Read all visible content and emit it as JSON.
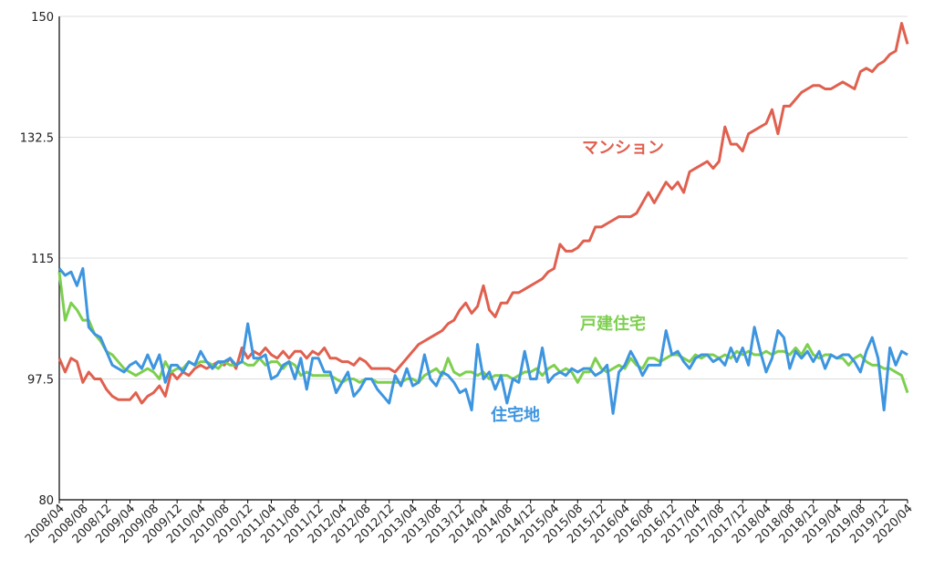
{
  "chart_data": {
    "type": "line",
    "categories": [
      "2008/04",
      null,
      null,
      null,
      "2008/08",
      null,
      null,
      null,
      "2008/12",
      null,
      null,
      null,
      "2009/04",
      null,
      null,
      null,
      "2009/08",
      null,
      null,
      null,
      "2009/12",
      null,
      null,
      null,
      "2010/04",
      null,
      null,
      null,
      "2010/08",
      null,
      null,
      null,
      "2010/12",
      null,
      null,
      null,
      "2011/04",
      null,
      null,
      null,
      "2011/08",
      null,
      null,
      null,
      "2011/12",
      null,
      null,
      null,
      "2012/04",
      null,
      null,
      null,
      "2012/08",
      null,
      null,
      null,
      "2012/12",
      null,
      null,
      null,
      "2013/04",
      null,
      null,
      null,
      "2013/08",
      null,
      null,
      null,
      "2013/12",
      null,
      null,
      null,
      "2014/04",
      null,
      null,
      null,
      "2014/08",
      null,
      null,
      null,
      "2014/12",
      null,
      null,
      null,
      "2015/04",
      null,
      null,
      null,
      "2015/08",
      null,
      null,
      null,
      "2015/12",
      null,
      null,
      null,
      "2016/04",
      null,
      null,
      null,
      "2016/08",
      null,
      null,
      null,
      "2016/12",
      null,
      null,
      null,
      "2017/04",
      null,
      null,
      null,
      "2017/08",
      null,
      null,
      null,
      "2017/12",
      null,
      null,
      null,
      "2018/04",
      null,
      null,
      null,
      "2018/08",
      null,
      null,
      null,
      "2018/12",
      null,
      null,
      null,
      "2019/04",
      null,
      null,
      null,
      "2019/08",
      null,
      null,
      null,
      "2019/12",
      null,
      null,
      null,
      "2020/04"
    ],
    "series": [
      {
        "name": "マンション",
        "color": "#e0604f",
        "values": [
          100.5,
          98.5,
          100.5,
          100,
          97,
          98.5,
          97.5,
          97.5,
          96,
          95,
          94.5,
          94.5,
          94.5,
          95.5,
          94,
          95,
          95.5,
          96.5,
          95,
          98.5,
          97.5,
          98.5,
          98,
          99,
          99.5,
          99,
          99.5,
          100,
          99.5,
          100.5,
          99,
          102,
          100.5,
          101.5,
          101,
          102,
          101,
          100.5,
          101.5,
          100.5,
          101.5,
          101.5,
          100.5,
          101.5,
          101,
          102,
          100.5,
          100.5,
          100,
          100,
          99.5,
          100.5,
          100,
          99,
          99,
          99,
          99,
          98.5,
          99.5,
          100.5,
          101.5,
          102.5,
          103,
          103.5,
          104,
          104.5,
          105.5,
          106,
          107.5,
          108.5,
          107,
          108,
          111,
          107.5,
          106.5,
          108.5,
          108.5,
          110,
          110,
          110.5,
          111,
          111.5,
          112,
          113,
          113.5,
          117,
          116,
          116,
          116.5,
          117.5,
          117.5,
          119.5,
          119.5,
          120,
          120.5,
          121,
          121,
          121,
          121.5,
          123,
          124.5,
          123,
          124.5,
          126,
          125,
          126,
          124.5,
          127.5,
          128,
          128.5,
          129,
          128,
          129,
          134,
          131.5,
          131.5,
          130.5,
          133,
          133.5,
          134,
          134.5,
          136.5,
          133,
          137,
          137,
          138,
          139,
          139.5,
          140,
          140,
          139.5,
          139.5,
          140,
          140.5,
          140,
          139.5,
          142,
          142.5,
          142,
          143,
          143.5,
          144.5,
          145,
          149,
          146
        ]
      },
      {
        "name": "戸建住宅",
        "color": "#7dcf4f",
        "values": [
          113,
          106,
          108.5,
          107.5,
          106,
          106,
          104,
          103,
          101.5,
          101,
          100,
          99,
          98.5,
          98,
          98.5,
          99,
          98.5,
          97.5,
          100,
          98.5,
          99,
          99,
          100,
          99.5,
          100,
          100,
          99.5,
          99,
          100,
          99.5,
          99.5,
          100,
          99.5,
          99.5,
          100.5,
          99.5,
          100,
          100,
          99,
          100,
          99.5,
          98,
          98.5,
          98,
          98,
          98,
          98,
          97.5,
          97,
          97.5,
          97.5,
          97,
          97.5,
          97.5,
          97,
          97,
          97,
          97,
          97,
          97.5,
          97.5,
          97,
          98,
          98.5,
          99,
          98,
          100.5,
          98.5,
          98,
          98.5,
          98.5,
          98,
          98.5,
          97.5,
          98,
          98,
          98,
          97.5,
          98,
          98.5,
          98.5,
          99,
          98,
          99,
          99.5,
          98.5,
          99,
          98.5,
          97,
          98.5,
          98.5,
          100.5,
          99,
          98.5,
          99,
          99.5,
          99,
          100.5,
          99.5,
          99,
          100.5,
          100.5,
          100,
          100.5,
          101,
          101,
          100.5,
          100,
          101,
          100.5,
          101,
          101,
          100.5,
          101,
          100.5,
          101.5,
          101,
          101.5,
          101,
          101,
          101.5,
          101,
          101.5,
          101.5,
          101,
          102,
          101,
          102.5,
          101,
          100.5,
          101,
          101,
          100.5,
          100.5,
          99.5,
          100.5,
          101,
          100,
          99.5,
          99.5,
          99,
          99,
          98.5,
          98,
          95.5
        ]
      },
      {
        "name": "住宅地",
        "color": "#3d95e0",
        "values": [
          113.5,
          112.5,
          113,
          111,
          113.5,
          105,
          104,
          103.5,
          101.5,
          99.5,
          99,
          98.5,
          99.5,
          100,
          99,
          101,
          99,
          101,
          97,
          99.5,
          99.5,
          98.5,
          100,
          99.5,
          101.5,
          100,
          99,
          100,
          100,
          100.5,
          99.5,
          100,
          105.5,
          100.5,
          100.5,
          101,
          97.5,
          98,
          99.5,
          100,
          97.5,
          100.5,
          96,
          100.5,
          100.5,
          98.5,
          98.5,
          95.5,
          97,
          98.5,
          95,
          96,
          97.5,
          97.5,
          96,
          95,
          94,
          98,
          96.5,
          99,
          96.5,
          97,
          101,
          97.5,
          96.5,
          98.5,
          98,
          97,
          95.5,
          96,
          93,
          102.5,
          97.5,
          98.5,
          96,
          98,
          94,
          97.5,
          97,
          101.5,
          97.5,
          97.5,
          102,
          97,
          98,
          98.5,
          98,
          99,
          98.5,
          99,
          99,
          98,
          98.5,
          99.5,
          92.5,
          98.5,
          99.5,
          101.5,
          100,
          98,
          99.5,
          99.5,
          99.5,
          104.5,
          101,
          101.5,
          100,
          99,
          100.5,
          101,
          101,
          100,
          100.5,
          99.5,
          102,
          100,
          102,
          99.5,
          105,
          101.5,
          98.5,
          100.5,
          104.5,
          103.5,
          99,
          101.5,
          100.5,
          101.5,
          100,
          101.5,
          99,
          101,
          100.5,
          101,
          101,
          100,
          98.5,
          101.5,
          103.5,
          100.5,
          93,
          102,
          99.5,
          101.5,
          101
        ]
      }
    ],
    "ylim": [
      80,
      150
    ],
    "yticks": [
      80,
      97.5,
      115,
      132.5,
      150
    ],
    "grid": true
  }
}
